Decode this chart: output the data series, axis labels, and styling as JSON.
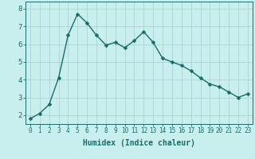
{
  "x": [
    0,
    1,
    2,
    3,
    4,
    5,
    6,
    7,
    8,
    9,
    10,
    11,
    12,
    13,
    14,
    15,
    16,
    17,
    18,
    19,
    20,
    21,
    22,
    23
  ],
  "y": [
    1.8,
    2.1,
    2.6,
    4.1,
    6.5,
    7.7,
    7.2,
    6.5,
    5.95,
    6.1,
    5.8,
    6.2,
    6.7,
    6.1,
    5.2,
    5.0,
    4.8,
    4.5,
    4.1,
    3.75,
    3.6,
    3.3,
    3.0,
    3.2
  ],
  "bg_color": "#c8eeee",
  "grid_color": "#aad4d4",
  "line_color": "#1a6b6b",
  "marker_color": "#1a6b6b",
  "xlabel": "Humidex (Indice chaleur)",
  "xlabel_fontsize": 7,
  "ylabel_ticks": [
    2,
    3,
    4,
    5,
    6,
    7,
    8
  ],
  "ylim": [
    1.5,
    8.4
  ],
  "xlim": [
    -0.5,
    23.5
  ],
  "xtick_fontsize": 5.5,
  "ytick_fontsize": 6.5,
  "marker_size": 2.5,
  "line_width": 1.0
}
